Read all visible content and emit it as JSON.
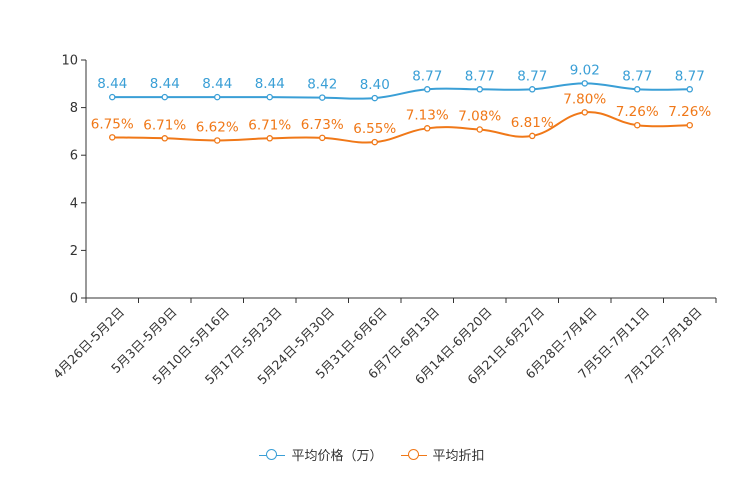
{
  "chart_data": {
    "type": "line",
    "categories": [
      "4月26日-5月2日",
      "5月3日-5月9日",
      "5月10日-5月16日",
      "5月17日-5月23日",
      "5月24日-5月30日",
      "5月31日-6月6日",
      "6月7日-6月13日",
      "6月14日-6月20日",
      "6月21日-6月27日",
      "6月28日-7月4日",
      "7月5日-7月11日",
      "7月12日-7月18日"
    ],
    "ylim": [
      0,
      10
    ],
    "yticks": [
      "0",
      "2",
      "4",
      "6",
      "8",
      "10"
    ],
    "series": [
      {
        "name": "平均价格（万）",
        "color": "#3a9fd6",
        "values": [
          8.44,
          8.44,
          8.44,
          8.44,
          8.42,
          8.4,
          8.77,
          8.77,
          8.77,
          9.02,
          8.77,
          8.77
        ],
        "labels": [
          "8.44",
          "8.44",
          "8.44",
          "8.44",
          "8.42",
          "8.40",
          "8.77",
          "8.77",
          "8.77",
          "9.02",
          "8.77",
          "8.77"
        ]
      },
      {
        "name": "平均折扣",
        "color": "#f07818",
        "values": [
          6.75,
          6.71,
          6.62,
          6.71,
          6.73,
          6.55,
          7.13,
          7.08,
          6.81,
          7.8,
          7.26,
          7.26
        ],
        "labels": [
          "6.75%",
          "6.71%",
          "6.62%",
          "6.71%",
          "6.73%",
          "6.55%",
          "7.13%",
          "7.08%",
          "6.81%",
          "7.80%",
          "7.26%",
          "7.26%"
        ]
      }
    ]
  }
}
